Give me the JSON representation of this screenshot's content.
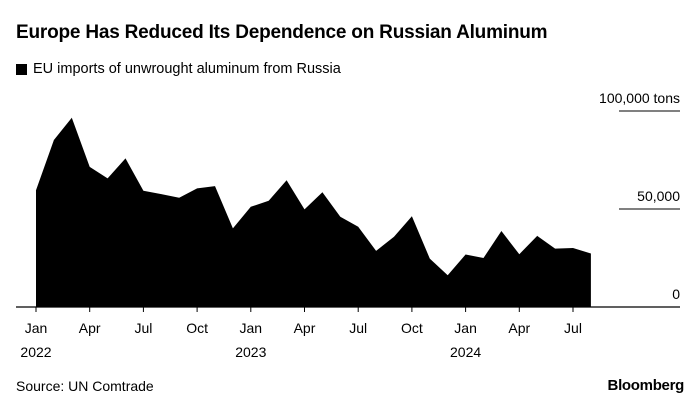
{
  "title": "Europe Has Reduced Its Dependence on Russian Aluminum",
  "legend": {
    "label": "EU imports of unwrought aluminum from Russia",
    "color": "#000000"
  },
  "source": "Source: UN Comtrade",
  "brand": "Bloomberg",
  "chart_data": {
    "type": "area",
    "title": "Europe Has Reduced Its Dependence on Russian Aluminum",
    "series": [
      {
        "name": "EU imports of unwrought aluminum from Russia",
        "color": "#000000",
        "x": [
          "2022-01",
          "2022-02",
          "2022-03",
          "2022-04",
          "2022-05",
          "2022-06",
          "2022-07",
          "2022-08",
          "2022-09",
          "2022-10",
          "2022-11",
          "2022-12",
          "2023-01",
          "2023-02",
          "2023-03",
          "2023-04",
          "2023-05",
          "2023-06",
          "2023-07",
          "2023-08",
          "2023-09",
          "2023-10",
          "2023-11",
          "2023-12",
          "2024-01",
          "2024-02",
          "2024-03",
          "2024-04",
          "2024-05",
          "2024-06",
          "2024-07",
          "2024-08"
        ],
        "values": [
          59600,
          85200,
          96600,
          71500,
          65600,
          75800,
          59300,
          57600,
          55700,
          60500,
          61700,
          40100,
          51100,
          54200,
          64700,
          49800,
          58500,
          46000,
          40900,
          28600,
          35800,
          46300,
          24700,
          16200,
          26800,
          25000,
          38800,
          26900,
          36300,
          29800,
          30100,
          27300
        ]
      }
    ],
    "ylim": [
      0,
      100000
    ],
    "y_ticks": [
      {
        "value": 0,
        "label": "0"
      },
      {
        "value": 50000,
        "label": "50,000"
      },
      {
        "value": 100000,
        "label": "100,000 tons"
      }
    ],
    "x_ticks": [
      {
        "x": "2022-01",
        "label": "Jan",
        "year": "2022"
      },
      {
        "x": "2022-04",
        "label": "Apr"
      },
      {
        "x": "2022-07",
        "label": "Jul"
      },
      {
        "x": "2022-10",
        "label": "Oct"
      },
      {
        "x": "2023-01",
        "label": "Jan",
        "year": "2023"
      },
      {
        "x": "2023-04",
        "label": "Apr"
      },
      {
        "x": "2023-07",
        "label": "Jul"
      },
      {
        "x": "2023-10",
        "label": "Oct"
      },
      {
        "x": "2024-01",
        "label": "Jan",
        "year": "2024"
      },
      {
        "x": "2024-04",
        "label": "Apr"
      },
      {
        "x": "2024-07",
        "label": "Jul"
      }
    ],
    "y_axis_position": "right",
    "grid": false,
    "legend_position": "top-left"
  }
}
